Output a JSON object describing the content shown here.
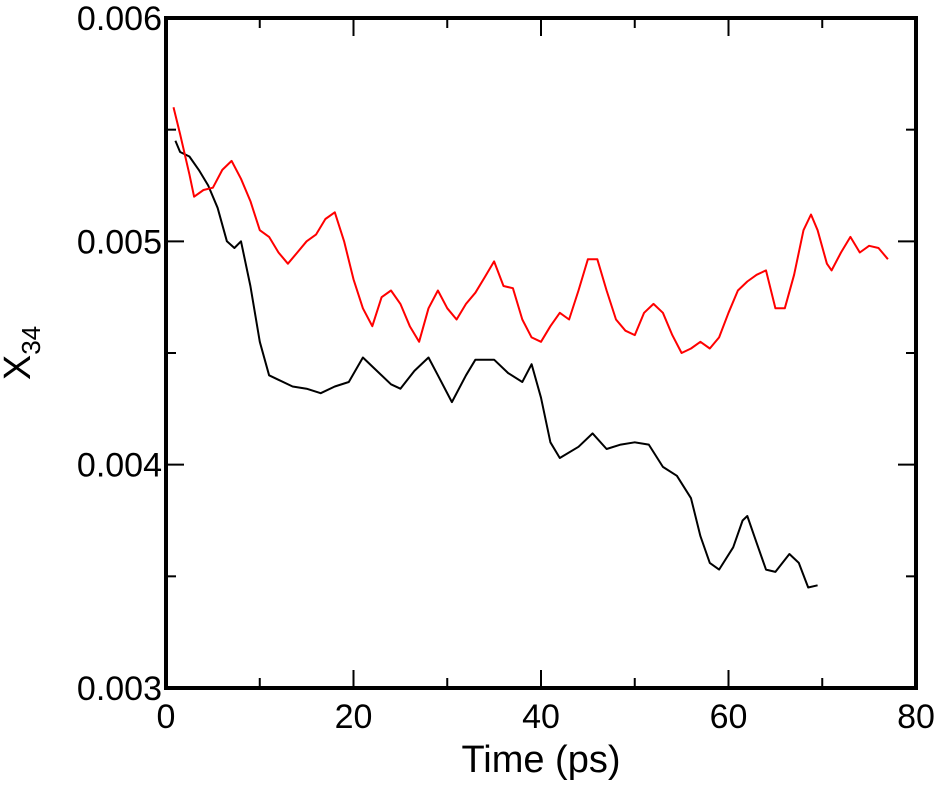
{
  "chart_data": {
    "type": "line",
    "title": "",
    "xlabel": "Time (ps)",
    "ylabel_main": "X",
    "ylabel_sub": "34",
    "xlim": [
      0,
      80
    ],
    "ylim": [
      0.003,
      0.006
    ],
    "x_ticks": [
      0,
      20,
      40,
      60,
      80
    ],
    "x_tick_labels": [
      "0",
      "20",
      "40",
      "60",
      "80"
    ],
    "y_ticks": [
      0.003,
      0.004,
      0.005,
      0.006
    ],
    "y_tick_labels": [
      "0.003",
      "0.004",
      "0.005",
      "0.006"
    ],
    "y_minor_ticks": [
      0.0035,
      0.0045,
      0.0055
    ],
    "grid": false,
    "legend": "none",
    "series": [
      {
        "color": "#000000",
        "points": [
          [
            1.0,
            0.00545
          ],
          [
            1.5,
            0.0054
          ],
          [
            2.5,
            0.00538
          ],
          [
            3.5,
            0.00532
          ],
          [
            4.5,
            0.00525
          ],
          [
            5.5,
            0.00515
          ],
          [
            6.5,
            0.005
          ],
          [
            7.3,
            0.00497
          ],
          [
            8.0,
            0.005
          ],
          [
            9.0,
            0.0048
          ],
          [
            10.0,
            0.00455
          ],
          [
            11.0,
            0.0044
          ],
          [
            12.0,
            0.00438
          ],
          [
            13.5,
            0.00435
          ],
          [
            15.0,
            0.00434
          ],
          [
            16.5,
            0.00432
          ],
          [
            18.0,
            0.00435
          ],
          [
            19.5,
            0.00437
          ],
          [
            21.0,
            0.00448
          ],
          [
            22.5,
            0.00442
          ],
          [
            24.0,
            0.00436
          ],
          [
            25.0,
            0.00434
          ],
          [
            26.5,
            0.00442
          ],
          [
            28.0,
            0.00448
          ],
          [
            29.0,
            0.0044
          ],
          [
            30.5,
            0.00428
          ],
          [
            32.0,
            0.0044
          ],
          [
            33.0,
            0.00447
          ],
          [
            35.0,
            0.00447
          ],
          [
            36.5,
            0.00441
          ],
          [
            38.0,
            0.00437
          ],
          [
            39.0,
            0.00445
          ],
          [
            40.0,
            0.0043
          ],
          [
            41.0,
            0.0041
          ],
          [
            42.0,
            0.00403
          ],
          [
            44.0,
            0.00408
          ],
          [
            45.5,
            0.00414
          ],
          [
            47.0,
            0.00407
          ],
          [
            48.5,
            0.00409
          ],
          [
            50.0,
            0.0041
          ],
          [
            51.5,
            0.00409
          ],
          [
            53.0,
            0.00399
          ],
          [
            54.5,
            0.00395
          ],
          [
            56.0,
            0.00385
          ],
          [
            57.0,
            0.00368
          ],
          [
            58.0,
            0.00356
          ],
          [
            59.0,
            0.00353
          ],
          [
            60.5,
            0.00363
          ],
          [
            61.5,
            0.00375
          ],
          [
            62.0,
            0.00377
          ],
          [
            63.0,
            0.00365
          ],
          [
            64.0,
            0.00353
          ],
          [
            65.0,
            0.00352
          ],
          [
            66.5,
            0.0036
          ],
          [
            67.5,
            0.00356
          ],
          [
            68.5,
            0.00345
          ],
          [
            69.5,
            0.00346
          ]
        ]
      },
      {
        "color": "#ff0000",
        "points": [
          [
            0.8,
            0.0056
          ],
          [
            1.5,
            0.00548
          ],
          [
            2.5,
            0.0053
          ],
          [
            3.0,
            0.0052
          ],
          [
            4.0,
            0.00523
          ],
          [
            5.0,
            0.00524
          ],
          [
            6.0,
            0.00532
          ],
          [
            7.0,
            0.00536
          ],
          [
            8.0,
            0.00528
          ],
          [
            9.0,
            0.00518
          ],
          [
            10.0,
            0.00505
          ],
          [
            11.0,
            0.00502
          ],
          [
            12.0,
            0.00495
          ],
          [
            13.0,
            0.0049
          ],
          [
            14.0,
            0.00495
          ],
          [
            15.0,
            0.005
          ],
          [
            16.0,
            0.00503
          ],
          [
            17.0,
            0.0051
          ],
          [
            18.0,
            0.00513
          ],
          [
            19.0,
            0.005
          ],
          [
            20.0,
            0.00483
          ],
          [
            21.0,
            0.0047
          ],
          [
            22.0,
            0.00462
          ],
          [
            23.0,
            0.00475
          ],
          [
            24.0,
            0.00478
          ],
          [
            25.0,
            0.00472
          ],
          [
            26.0,
            0.00462
          ],
          [
            27.0,
            0.00455
          ],
          [
            28.0,
            0.0047
          ],
          [
            29.0,
            0.00478
          ],
          [
            30.0,
            0.0047
          ],
          [
            31.0,
            0.00465
          ],
          [
            32.0,
            0.00472
          ],
          [
            33.0,
            0.00477
          ],
          [
            34.0,
            0.00484
          ],
          [
            35.0,
            0.00491
          ],
          [
            36.0,
            0.0048
          ],
          [
            37.0,
            0.00479
          ],
          [
            38.0,
            0.00465
          ],
          [
            39.0,
            0.00457
          ],
          [
            40.0,
            0.00455
          ],
          [
            41.0,
            0.00462
          ],
          [
            42.0,
            0.00468
          ],
          [
            43.0,
            0.00465
          ],
          [
            44.0,
            0.00478
          ],
          [
            45.0,
            0.00492
          ],
          [
            46.0,
            0.00492
          ],
          [
            47.0,
            0.00478
          ],
          [
            48.0,
            0.00465
          ],
          [
            49.0,
            0.0046
          ],
          [
            50.0,
            0.00458
          ],
          [
            51.0,
            0.00468
          ],
          [
            52.0,
            0.00472
          ],
          [
            53.0,
            0.00468
          ],
          [
            54.0,
            0.00458
          ],
          [
            55.0,
            0.0045
          ],
          [
            56.0,
            0.00452
          ],
          [
            57.0,
            0.00455
          ],
          [
            58.0,
            0.00452
          ],
          [
            59.0,
            0.00457
          ],
          [
            60.0,
            0.00468
          ],
          [
            61.0,
            0.00478
          ],
          [
            62.0,
            0.00482
          ],
          [
            63.0,
            0.00485
          ],
          [
            64.0,
            0.00487
          ],
          [
            65.0,
            0.0047
          ],
          [
            66.0,
            0.0047
          ],
          [
            67.0,
            0.00485
          ],
          [
            68.0,
            0.00505
          ],
          [
            68.8,
            0.00512
          ],
          [
            69.5,
            0.00505
          ],
          [
            70.5,
            0.0049
          ],
          [
            71.0,
            0.00487
          ],
          [
            72.0,
            0.00495
          ],
          [
            73.0,
            0.00502
          ],
          [
            74.0,
            0.00495
          ],
          [
            75.0,
            0.00498
          ],
          [
            76.0,
            0.00497
          ],
          [
            77.0,
            0.00492
          ]
        ]
      }
    ]
  }
}
